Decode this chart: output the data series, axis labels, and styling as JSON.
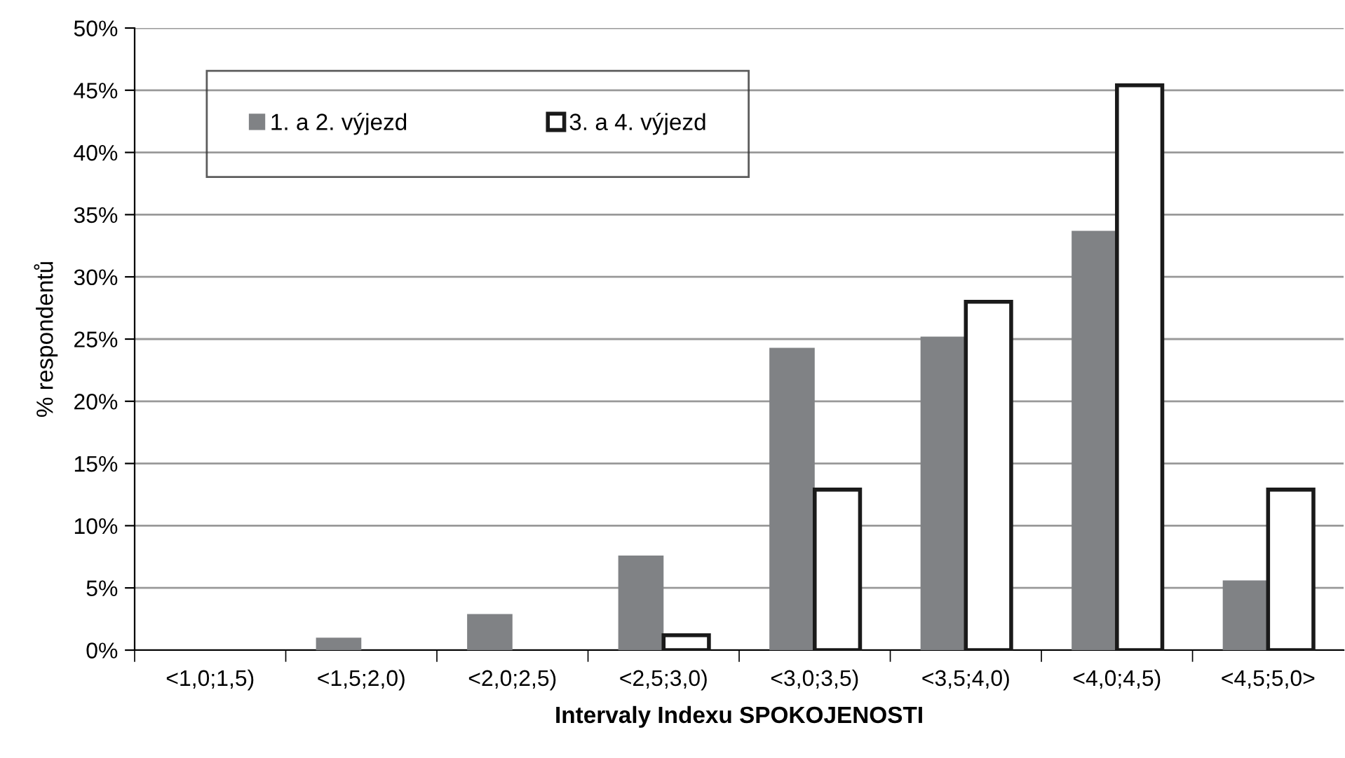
{
  "chart_data": {
    "type": "bar",
    "xlabel": "Intervaly Indexu SPOKOJENOSTI",
    "ylabel": "% respondentů",
    "categories": [
      "<1,0;1,5)",
      "<1,5;2,0)",
      "<2,0;2,5)",
      "<2,5;3,0)",
      "<3,0;3,5)",
      "<3,5;4,0)",
      "<4,0;4,5)",
      "<4,5;5,0>"
    ],
    "series": [
      {
        "name": "1. a 2. výjezd",
        "color": "#808285",
        "values": [
          0,
          1.0,
          2.9,
          7.6,
          24.3,
          25.2,
          33.7,
          5.6
        ]
      },
      {
        "name": "3. a 4. výjezd",
        "color": "#ffffff",
        "values": [
          0,
          0,
          0,
          1.2,
          12.9,
          28.0,
          45.4,
          12.9
        ]
      }
    ],
    "ylim": [
      0,
      50
    ],
    "yticks": [
      {
        "value": 0,
        "label": "0%"
      },
      {
        "value": 5,
        "label": "5%"
      },
      {
        "value": 10,
        "label": "10%"
      },
      {
        "value": 15,
        "label": "15%"
      },
      {
        "value": 20,
        "label": "20%"
      },
      {
        "value": 25,
        "label": "25%"
      },
      {
        "value": 30,
        "label": "30%"
      },
      {
        "value": 35,
        "label": "35%"
      },
      {
        "value": 40,
        "label": "40%"
      },
      {
        "value": 45,
        "label": "45%"
      },
      {
        "value": 50,
        "label": "50%"
      }
    ],
    "grid": "y",
    "legend": "top left"
  }
}
